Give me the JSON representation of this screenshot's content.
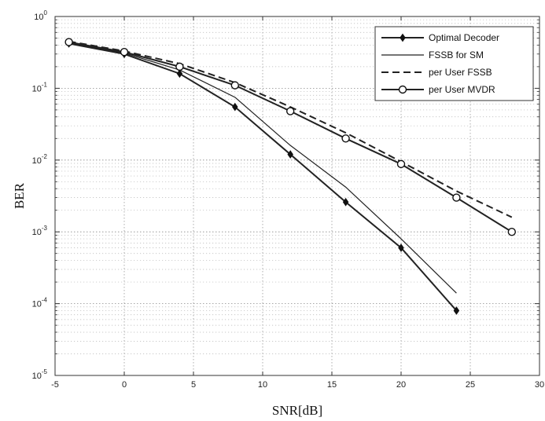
{
  "chart_data": {
    "type": "line",
    "title": "",
    "xlabel": "SNR[dB]",
    "ylabel": "BER",
    "xlim": [
      -5,
      30
    ],
    "ylim": [
      1e-05,
      1
    ],
    "yscale": "log",
    "grid": true,
    "legend_position": "top-right",
    "x_ticks": [
      "-5",
      "0",
      "5",
      "10",
      "15",
      "20",
      "25",
      "30"
    ],
    "y_ticks": [
      {
        "base": "10",
        "exp": "0"
      },
      {
        "base": "10",
        "exp": "-1"
      },
      {
        "base": "10",
        "exp": "-2"
      },
      {
        "base": "10",
        "exp": "-3"
      },
      {
        "base": "10",
        "exp": "-4"
      },
      {
        "base": "10",
        "exp": "-5"
      }
    ],
    "series": [
      {
        "name": "Optimal Decoder",
        "line": "solid",
        "marker": "diamond-filled",
        "x": [
          -4,
          0,
          4,
          8,
          12,
          16,
          20,
          24
        ],
        "y": [
          0.42,
          0.3,
          0.16,
          0.055,
          0.012,
          0.0026,
          0.0006,
          8e-05
        ]
      },
      {
        "name": "FSSB for SM",
        "line": "solid-thin",
        "marker": "none",
        "x": [
          -4,
          0,
          4,
          8,
          12,
          16,
          20,
          24
        ],
        "y": [
          0.43,
          0.31,
          0.18,
          0.075,
          0.016,
          0.0042,
          0.0008,
          0.00014
        ]
      },
      {
        "name": "per User FSSB",
        "line": "dashed",
        "marker": "none",
        "x": [
          -4,
          0,
          4,
          8,
          12,
          16,
          20,
          24,
          28
        ],
        "y": [
          0.45,
          0.33,
          0.22,
          0.12,
          0.055,
          0.024,
          0.0095,
          0.0037,
          0.0016
        ]
      },
      {
        "name": "per User MVDR",
        "line": "solid",
        "marker": "circle-open",
        "x": [
          -4,
          0,
          4,
          8,
          12,
          16,
          20,
          24,
          28
        ],
        "y": [
          0.44,
          0.32,
          0.2,
          0.11,
          0.048,
          0.02,
          0.0088,
          0.003,
          0.001
        ]
      }
    ]
  }
}
